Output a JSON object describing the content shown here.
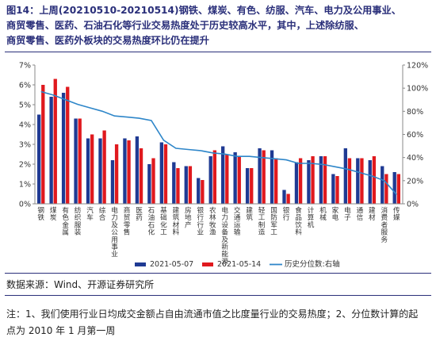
{
  "header": {
    "title_line1": "图14：上周(20210510-20210514)钢铁、煤炭、有色、纺服、汽车、电力及公用事业、",
    "title_line2": "商贸零售、医药、石油石化等行业交易热度处于历史较高水平，其中，上述除纺服、",
    "title_line3": "商贸零售、医药外板块的交易热度环比仍在提升"
  },
  "footer": {
    "source": "数据来源：Wind、开源证券研究所",
    "note_line1": "注：1、我们使用行业日均成交金额占自由流通市值之比度量行业的交易热度；2、分位数计算的起",
    "note_line2": "点为 2010 年 1 月第一周"
  },
  "colors": {
    "series1": "#1f3a93",
    "series2": "#e0191e",
    "line": "#2e86c9",
    "title": "#2a2f7a"
  },
  "chart_data": {
    "type": "bar",
    "categories": [
      "钢铁",
      "煤炭",
      "有色金属",
      "纺织服装",
      "汽车",
      "综合",
      "电力及公用事业",
      "商贸零售",
      "医药",
      "石油石化",
      "基础化工",
      "建筑材料",
      "房地产",
      "银行行业",
      "农林牧渔",
      "电力设备及新能源",
      "交通运输",
      "建筑",
      "轻工制造",
      "国防军工",
      "银行",
      "食品饮料",
      "计算机",
      "机械",
      "家电",
      "电子",
      "通信",
      "建材",
      "消费者服务",
      "传媒"
    ],
    "tick_labels": [
      "钢铁",
      "煤炭",
      "有色金属",
      "纺织服装",
      "汽车",
      "综合",
      "电力及公用事业",
      "商贸零售",
      "医药",
      "石油石化",
      "基础化工",
      "建筑材料",
      "房地产",
      "银行行业",
      "农林牧渔",
      "电力设备及新能源",
      "交通运输",
      "建筑",
      "轻工制造",
      "国防军工",
      "银行",
      "食品饮料",
      "计算机",
      "机械",
      "家电",
      "电子",
      "通信",
      "建材",
      "消费者服务",
      "传媒"
    ],
    "series": [
      {
        "name": "2021-05-07",
        "values": [
          4.5,
          5.4,
          5.6,
          4.3,
          3.3,
          3.3,
          2.2,
          3.3,
          3.4,
          2.0,
          3.1,
          2.1,
          1.9,
          1.3,
          2.4,
          2.9,
          2.6,
          1.8,
          2.8,
          2.7,
          0.7,
          2.1,
          2.2,
          2.4,
          1.5,
          2.8,
          2.3,
          2.2,
          1.9,
          1.6
        ]
      },
      {
        "name": "2021-05-14",
        "values": [
          6.0,
          6.3,
          5.9,
          4.3,
          3.5,
          3.7,
          3.0,
          3.2,
          2.8,
          2.3,
          3.0,
          1.8,
          1.9,
          1.2,
          2.7,
          2.5,
          2.4,
          1.8,
          2.7,
          2.3,
          0.5,
          2.3,
          2.4,
          2.4,
          1.4,
          2.3,
          2.3,
          2.4,
          1.5,
          1.5
        ]
      },
      {
        "name": "历史分位数:右轴",
        "axis": "right",
        "type": "line",
        "values": [
          97,
          94,
          90,
          86,
          83,
          80,
          76,
          75,
          74,
          72,
          55,
          48,
          47,
          46,
          44,
          43,
          41,
          41,
          40,
          39,
          38,
          35,
          35,
          34,
          32,
          30,
          27,
          24,
          20,
          8
        ]
      }
    ],
    "left_axis": {
      "ylim": [
        0,
        7
      ],
      "ticks": [
        "0%",
        "1%",
        "2%",
        "3%",
        "4%",
        "5%",
        "6%",
        "7%"
      ]
    },
    "right_axis": {
      "ylim": [
        0,
        120
      ],
      "ticks": [
        "0%",
        "20%",
        "40%",
        "60%",
        "80%",
        "100%",
        "120%"
      ]
    },
    "legend": {
      "placement": "bottom"
    },
    "grid": false
  }
}
